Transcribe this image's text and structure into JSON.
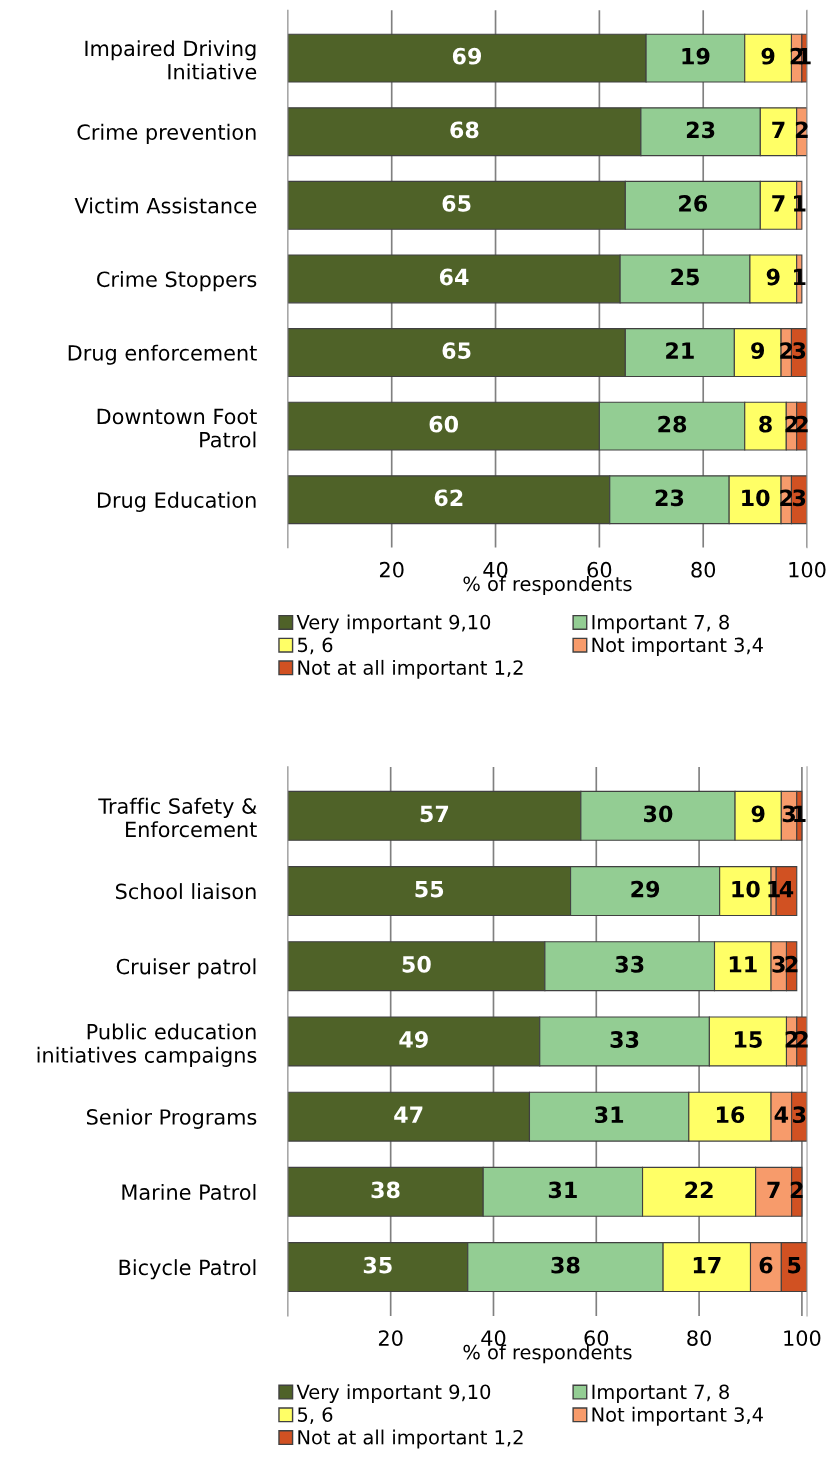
{
  "chart_data": [
    {
      "type": "bar",
      "orientation": "horizontal",
      "stacked": true,
      "xlabel": "% of respondents",
      "categories": [
        "Impaired Driving\nInitiative",
        "Crime prevention",
        "Victim Assistance",
        "Crime Stoppers",
        "Drug enforcement",
        "Downtown Foot\nPatrol",
        "Drug Education"
      ],
      "series": [
        {
          "name": "Very important 9,10",
          "color": "#4f6228",
          "values": [
            69,
            68,
            65,
            64,
            65,
            60,
            62
          ],
          "value_labels": [
            "69",
            "68",
            "65",
            "64",
            "65",
            "60",
            "62"
          ]
        },
        {
          "name": "Important 7, 8",
          "color": "#93cd93",
          "values": [
            19,
            23,
            26,
            25,
            21,
            28,
            23
          ],
          "value_labels": [
            "19",
            "23",
            "26",
            "25",
            "21",
            "28",
            "23"
          ]
        },
        {
          "name": "5, 6",
          "color": "#ffff66",
          "values": [
            9,
            7,
            7,
            9,
            9,
            8,
            10
          ],
          "value_labels": [
            "9",
            "7",
            "7",
            "9",
            "9",
            "8",
            "10"
          ]
        },
        {
          "name": "Not important 3,4",
          "color": "#f79b6b",
          "values": [
            2,
            2,
            1,
            1,
            2,
            2,
            2
          ],
          "value_labels": [
            "2",
            "2",
            "1",
            "1",
            "2",
            "2",
            "2"
          ]
        },
        {
          "name": "Not at all important 1,2",
          "color": "#d15122",
          "values": [
            1,
            null,
            null,
            null,
            3,
            2,
            3
          ],
          "value_labels": [
            "1",
            null,
            null,
            null,
            "3",
            "2",
            "3"
          ]
        }
      ],
      "xlim": [
        0,
        100
      ],
      "xticks": [
        20,
        40,
        60,
        80,
        100
      ],
      "grid": "x",
      "legend": "bottom"
    },
    {
      "type": "bar",
      "orientation": "horizontal",
      "stacked": true,
      "xlabel": "% of respondents",
      "categories": [
        "Traffic Safety &\nEnforcement",
        "School liaison",
        "Cruiser patrol",
        "Public education\ninitiatives campaigns",
        "Senior Programs",
        "Marine Patrol",
        "Bicycle Patrol"
      ],
      "series": [
        {
          "name": "Very important 9,10",
          "color": "#4f6228",
          "values": [
            57,
            55,
            50,
            49,
            47,
            38,
            35
          ],
          "value_labels": [
            "57",
            "55",
            "50",
            "49",
            "47",
            "38",
            "35"
          ]
        },
        {
          "name": "Important 7, 8",
          "color": "#93cd93",
          "values": [
            30,
            29,
            33,
            33,
            31,
            31,
            38
          ],
          "value_labels": [
            "30",
            "29",
            "33",
            "33",
            "31",
            "31",
            "38"
          ]
        },
        {
          "name": "5, 6",
          "color": "#ffff66",
          "values": [
            9,
            10,
            11,
            15,
            16,
            22,
            17
          ],
          "value_labels": [
            "9",
            "10",
            "11",
            "15",
            "16",
            "22",
            "17"
          ]
        },
        {
          "name": "Not important 3,4",
          "color": "#f79b6b",
          "values": [
            3,
            1,
            3,
            2,
            4,
            7,
            6
          ],
          "value_labels": [
            "3",
            "1",
            "3",
            "2",
            "4",
            "7",
            "6"
          ]
        },
        {
          "name": "Not at all important 1,2",
          "color": "#d15122",
          "values": [
            1,
            4,
            2,
            2,
            3,
            2,
            5
          ],
          "value_labels": [
            "1",
            "4",
            "2",
            "2",
            "3",
            "2",
            "5"
          ]
        }
      ],
      "xlim": [
        0,
        101
      ],
      "xticks": [
        20,
        40,
        60,
        80,
        100
      ],
      "grid": "x",
      "legend": "bottom"
    }
  ]
}
